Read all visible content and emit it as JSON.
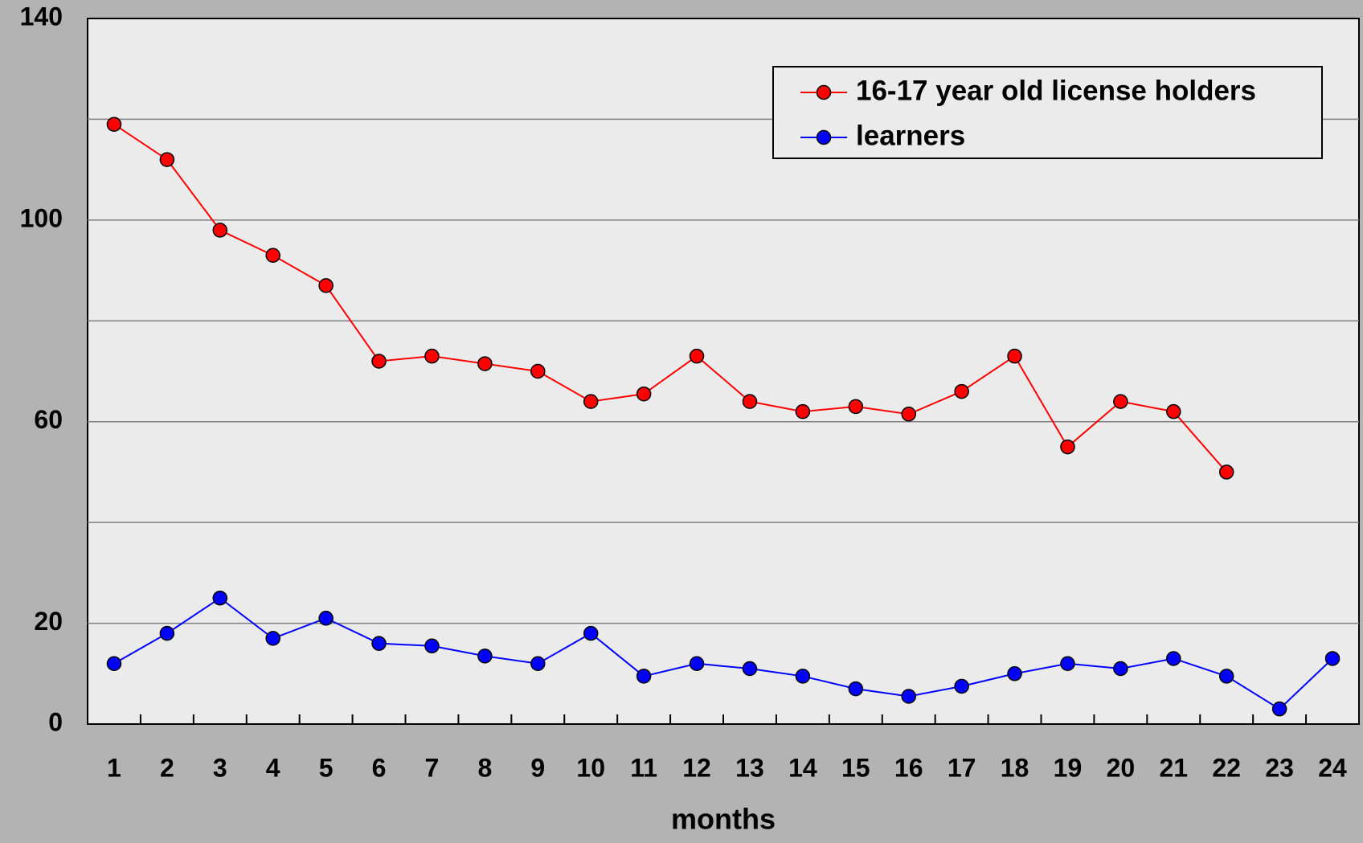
{
  "chart_data": {
    "type": "line",
    "xlabel": "months",
    "categories": [
      "1",
      "2",
      "3",
      "4",
      "5",
      "6",
      "7",
      "8",
      "9",
      "10",
      "11",
      "12",
      "13",
      "14",
      "15",
      "16",
      "17",
      "18",
      "19",
      "20",
      "21",
      "22",
      "23",
      "24"
    ],
    "series": [
      {
        "name": "16-17 year old license holders",
        "color": "#ff0000",
        "values": [
          119,
          112,
          98,
          93,
          87,
          72,
          73,
          71.5,
          70,
          64,
          65.5,
          73,
          64,
          62,
          63,
          61.5,
          66,
          73,
          55,
          64,
          62,
          50,
          null,
          null
        ]
      },
      {
        "name": "learners",
        "color": "#0000ff",
        "values": [
          12,
          18,
          25,
          17,
          21,
          16,
          15.5,
          13.5,
          12,
          18,
          9.5,
          12,
          11,
          9.5,
          7,
          5.5,
          7.5,
          10,
          12,
          11,
          13,
          9.5,
          3,
          13
        ]
      }
    ],
    "ylim": [
      0,
      140
    ],
    "yticks": [
      0,
      20,
      {
        "value": 40,
        "label": null
      },
      60,
      {
        "value": 80,
        "label": null
      },
      100,
      {
        "value": 120,
        "label": null
      },
      140
    ],
    "grid": true,
    "legend": "upper right"
  }
}
